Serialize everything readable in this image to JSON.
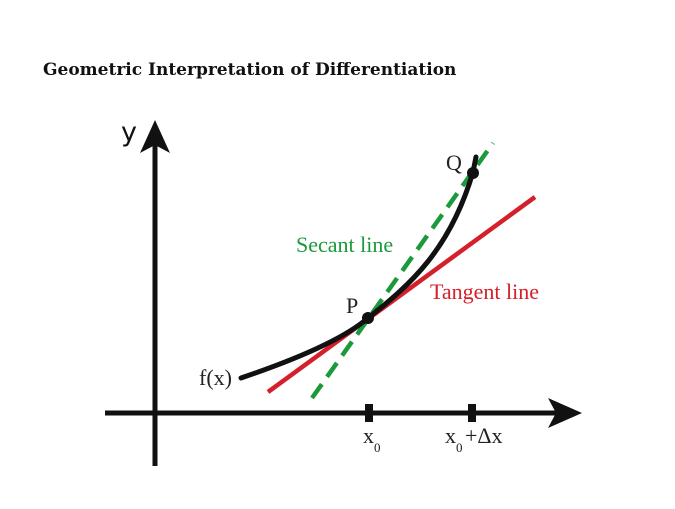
{
  "title": "Geometric Interpretation of Differentiation",
  "labels": {
    "y_axis": "y",
    "function": "f(x)",
    "point_p": "P",
    "point_q": "Q",
    "secant": "Secant line",
    "tangent": "Tangent line",
    "x0_base": "x",
    "x0_sub": "0",
    "x0dx_base": "x",
    "x0dx_sub": "0",
    "x0dx_rest": "+Δx"
  },
  "colors": {
    "axis": "#111111",
    "curve": "#111111",
    "secant": "#1a9a3a",
    "tangent": "#d3202a",
    "text": "#222222"
  }
}
